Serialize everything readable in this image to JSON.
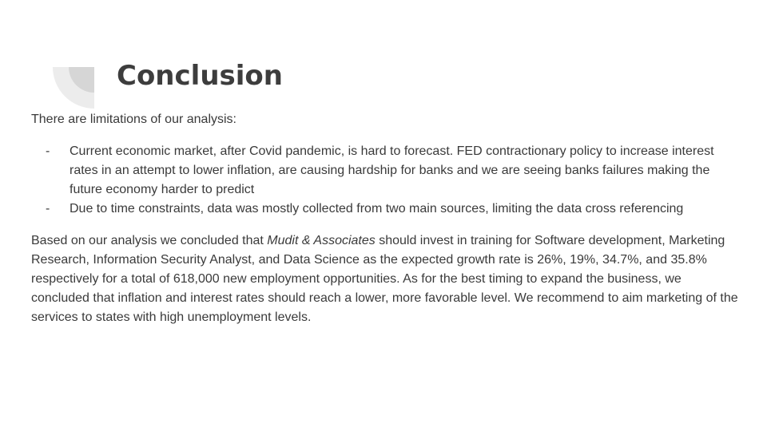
{
  "slide": {
    "title": "Conclusion",
    "intro": "There are limitations of our analysis:",
    "bullet_marker": "-",
    "bullets": [
      "Current economic market, after Covid pandemic, is hard to forecast. FED contractionary policy to increase interest rates in an attempt to lower inflation, are causing hardship for banks and we are seeing banks failures making the future economy harder to predict",
      "Due to time constraints, data was mostly collected from two main sources, limiting the data cross referencing"
    ],
    "conclusion": {
      "lead": "Based on our analysis we concluded that ",
      "company": "Mudit & Associates",
      "rest": " should invest in training for Software development, Marketing Research, Information Security Analyst, and Data Science as the expected growth rate is 26%, 19%, 34.7%,  and 35.8% respectively for a total of 618,000 new employment opportunities. As for the best timing to expand the business, we concluded that inflation and interest rates should reach a lower, more favorable level. We recommend to aim marketing of the services to states with high unemployment levels."
    }
  },
  "colors": {
    "text": "#3a3a3a",
    "title": "#3d3d3d",
    "deco_light": "#ececec",
    "deco_dark": "#d6d6d6",
    "background": "#ffffff"
  }
}
